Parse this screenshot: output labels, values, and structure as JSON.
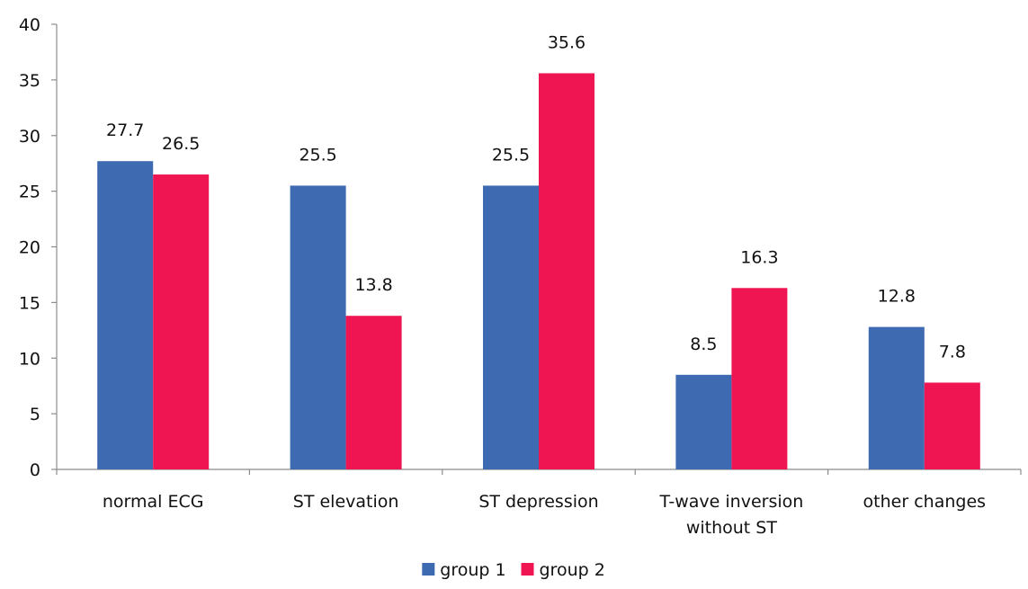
{
  "chart_data": {
    "type": "bar",
    "title": "",
    "xlabel": "",
    "ylabel": "",
    "ylim": [
      0,
      40
    ],
    "yticks": [
      0,
      5,
      10,
      15,
      20,
      25,
      30,
      35,
      40
    ],
    "grid": false,
    "legend_position": "bottom",
    "categories": [
      [
        "normal ECG"
      ],
      [
        "ST elevation"
      ],
      [
        "ST depression"
      ],
      [
        "T-wave inversion",
        "without ST"
      ],
      [
        "other changes"
      ]
    ],
    "series": [
      {
        "name": "group 1",
        "color": "#3d6ab0",
        "values": [
          27.7,
          25.5,
          25.5,
          8.5,
          12.8
        ]
      },
      {
        "name": "group 2",
        "color": "#ee1552",
        "values": [
          26.5,
          13.8,
          35.6,
          16.3,
          7.8
        ]
      }
    ],
    "data_labels": [
      [
        "27.7",
        "25.5",
        "25.5",
        "8.5",
        "12.8"
      ],
      [
        "26.5",
        "13.8",
        "35.6",
        "16.3",
        "7.8"
      ]
    ]
  }
}
